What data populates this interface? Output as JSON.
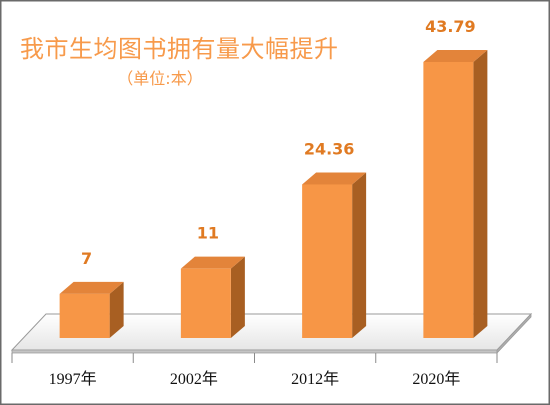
{
  "chart_data": {
    "type": "bar",
    "title": "我市生均图书拥有量大幅提升",
    "subtitle": "（单位:本）",
    "categories": [
      "1997年",
      "2002年",
      "2012年",
      "2020年"
    ],
    "values": [
      7,
      11,
      24.36,
      43.79
    ],
    "data_labels": [
      "7",
      "11",
      "24.36",
      "43.79"
    ],
    "three_d": true,
    "legend": false,
    "grid": false
  },
  "colors": {
    "title": "#F79A4B",
    "bar_front": "#F79646",
    "bar_top": "#E3843A",
    "bar_side": "#A85F22",
    "data_label": "#E07A22",
    "category_label": "#111111",
    "floor_fill": "#F4F4F4",
    "floor_stroke": "#9A9A9A"
  }
}
